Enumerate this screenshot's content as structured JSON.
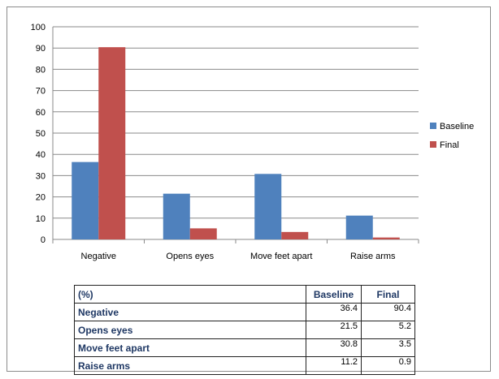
{
  "chart_data": {
    "type": "bar",
    "categories": [
      "Negative",
      "Opens eyes",
      "Move feet apart",
      "Raise arms"
    ],
    "series": [
      {
        "name": "Baseline",
        "values": [
          36.4,
          21.5,
          30.8,
          11.2
        ],
        "color": "#4f81bd"
      },
      {
        "name": "Final",
        "values": [
          90.4,
          5.2,
          3.5,
          0.9
        ],
        "color": "#c0504d"
      }
    ],
    "yticks": [
      "0",
      "10",
      "20",
      "30",
      "40",
      "50",
      "60",
      "70",
      "80",
      "90",
      "100"
    ],
    "ylim": [
      0,
      100
    ],
    "grid": true,
    "legend_position": "right"
  },
  "table": {
    "corner": "(%)",
    "headers": [
      "Baseline",
      "Final"
    ],
    "rows": [
      {
        "label": "Negative",
        "baseline": "36.4",
        "final": "90.4"
      },
      {
        "label": "Opens eyes",
        "baseline": "21.5",
        "final": "5.2"
      },
      {
        "label": "Move feet apart",
        "baseline": "30.8",
        "final": "3.5"
      },
      {
        "label": "Raise arms",
        "baseline": "11.2",
        "final": "0.9"
      }
    ]
  }
}
